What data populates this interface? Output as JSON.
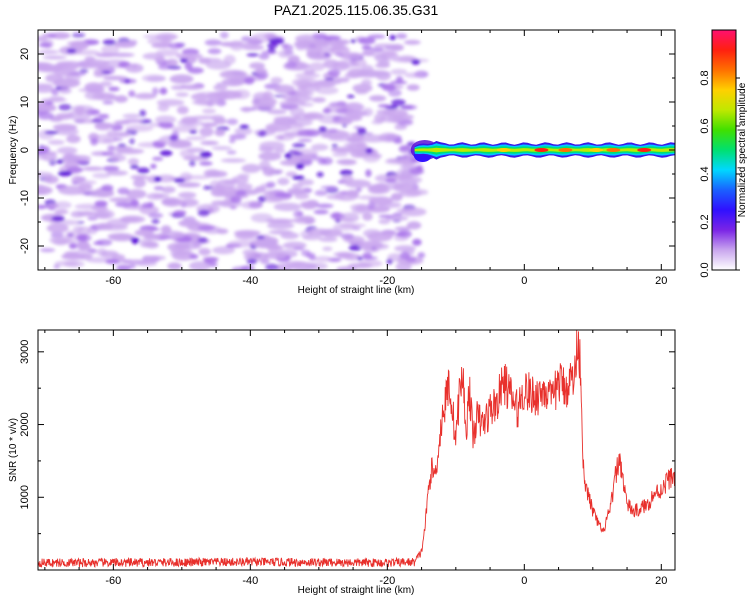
{
  "title": "PAZ1.2025.115.06.35.G31",
  "colors": {
    "snr_line": "#e8302c",
    "spectro_low": "#c9a6ee",
    "spectro_mid": "#7a24e6",
    "spectro_high": "#5a10d8"
  },
  "chart_data": [
    {
      "type": "heatmap",
      "name": "spectrogram",
      "xlabel": "Height of straight line (km)",
      "ylabel": "Frequency (Hz)",
      "xlim": [
        -71,
        22
      ],
      "ylim": [
        -25,
        25
      ],
      "xticks": [
        -60,
        -40,
        -20,
        0,
        20
      ],
      "yticks": [
        -20,
        -10,
        0,
        10,
        20
      ],
      "grid": false,
      "noise_region_x": [
        -71,
        -15
      ],
      "noise_region_y": [
        -25,
        24
      ],
      "signal_band": {
        "x_start": -16,
        "x_end": 22,
        "center_hz": 0,
        "approx_width_hz": 2.5
      },
      "colorbar": {
        "label": "Normalized spectral amplitude",
        "range": [
          0,
          1
        ],
        "ticks": [
          0.0,
          0.2,
          0.4,
          0.6,
          0.8
        ],
        "tick_labels": [
          "0.0",
          "0.2",
          "0.4",
          "0.6",
          "0.8"
        ],
        "colormap": [
          "#ffffff",
          "#c9a6ee",
          "#7a24e6",
          "#3010ff",
          "#1a60ff",
          "#00d8ff",
          "#00e070",
          "#40e000",
          "#c0e800",
          "#ffd000",
          "#ff7000",
          "#ff2010",
          "#ff1070"
        ]
      }
    },
    {
      "type": "line",
      "name": "snr",
      "xlabel": "Height of straight line (km)",
      "ylabel": "SNR (10 * v/v)",
      "xlim": [
        -71,
        22
      ],
      "ylim": [
        0,
        3300
      ],
      "xticks": [
        -60,
        -40,
        -20,
        0,
        20
      ],
      "yticks": [
        1000,
        2000,
        3000
      ],
      "grid": false,
      "series": [
        {
          "x": [
            -71,
            -60,
            -50,
            -40,
            -30,
            -20,
            -16,
            -15,
            -14.5,
            -14,
            -13.5,
            -13,
            -12.5,
            -12,
            -11.5,
            -11,
            -10.5,
            -10,
            -9.5,
            -9,
            -8.5,
            -8,
            -7.5,
            -7,
            -6,
            -5,
            -4,
            -3,
            -2,
            -1,
            0,
            1,
            2,
            3,
            4,
            5,
            6,
            7,
            7.5,
            7.8,
            8.2,
            8.7,
            9,
            9.5,
            10,
            10.5,
            11,
            11.5,
            12,
            12.5,
            13,
            13.5,
            14,
            14.5,
            15,
            16,
            17,
            18,
            19,
            20,
            21,
            22
          ],
          "y": [
            100,
            100,
            105,
            110,
            105,
            100,
            110,
            250,
            600,
            1100,
            1400,
            1300,
            1700,
            2100,
            2300,
            2600,
            2200,
            1800,
            2400,
            2700,
            1900,
            2500,
            1800,
            2100,
            2000,
            2200,
            2300,
            2600,
            2400,
            2200,
            2500,
            2400,
            2400,
            2500,
            2300,
            2600,
            2500,
            2650,
            2700,
            3300,
            2800,
            1200,
            1100,
            1000,
            800,
            700,
            600,
            500,
            700,
            800,
            1100,
            1400,
            1500,
            1200,
            900,
            800,
            850,
            900,
            1050,
            1100,
            1250,
            1300
          ]
        }
      ]
    }
  ]
}
